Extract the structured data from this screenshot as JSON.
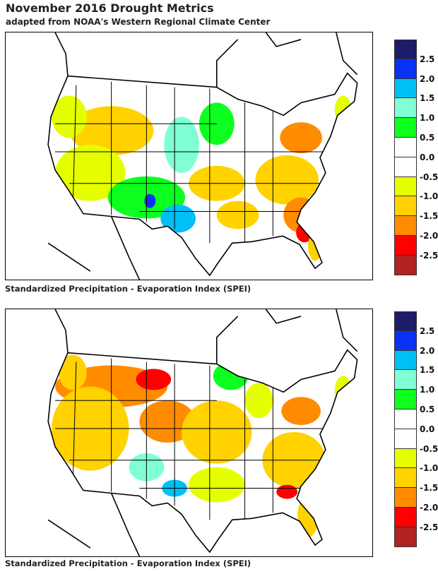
{
  "title": "November 2016 Drought Metrics",
  "subtitle": "adapted from NOAA's Western Regional Climate Center",
  "panels": [
    {
      "caption": "Standardized Precipitation - Evaporation Index (SPEI)"
    },
    {
      "caption": "Standardized Precipitation - Evaporation Index (SPEI)"
    }
  ],
  "legend": {
    "colors": [
      "#1c1c6b",
      "#0a32f5",
      "#00bff5",
      "#80ffd5",
      "#0dff1f",
      "#ffffff",
      "#ffffff",
      "#e6ff00",
      "#ffd200",
      "#ff8c00",
      "#ff0000",
      "#b22222"
    ],
    "labels": [
      "2.5",
      "2.0",
      "1.5",
      "1.0",
      "0.5",
      "0.0",
      "-0.5",
      "-1.0",
      "-1.5",
      "-2.0",
      "-2.5"
    ]
  }
}
